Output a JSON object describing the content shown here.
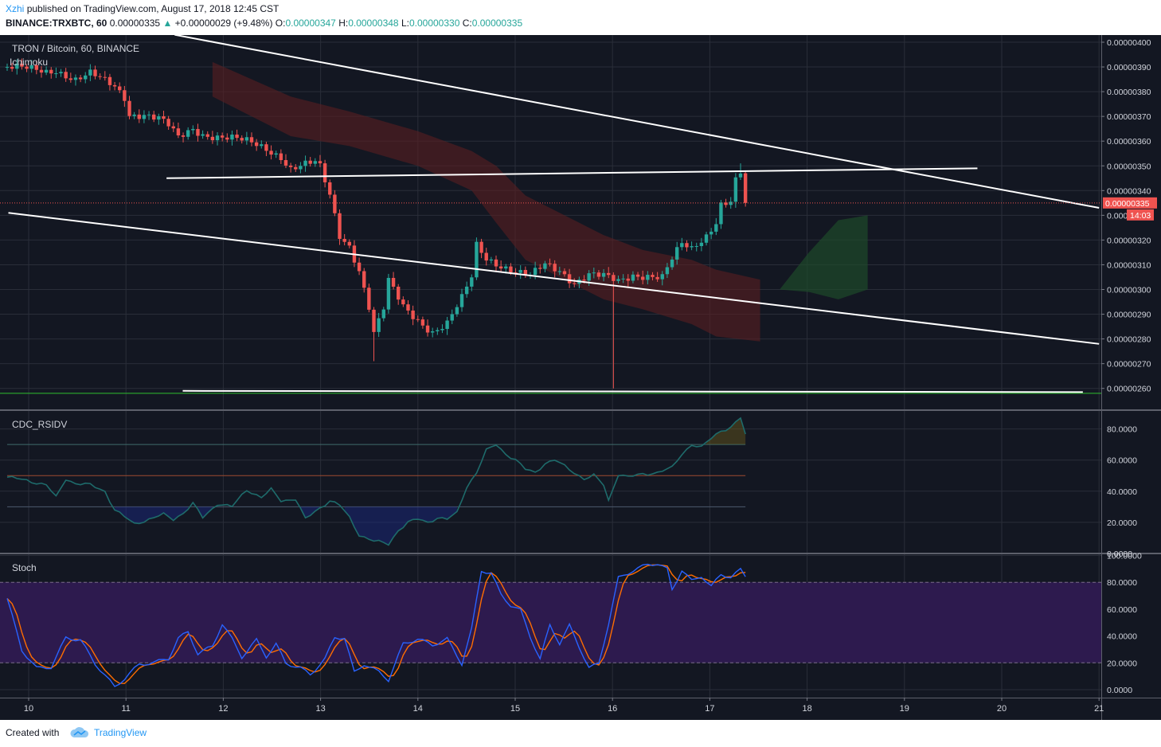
{
  "header": {
    "author": "Xzhi",
    "published": "published on TradingView.com, August 17, 2018 12:45 CST",
    "symbol": "BINANCE:TRXBTC, 60",
    "last": "0.00000335",
    "change": "+0.00000029 (+9.48%)",
    "o_label": "O:",
    "o_value": "0.00000347",
    "h_label": "H:",
    "h_value": "0.00000348",
    "l_label": "L:",
    "l_value": "0.00000330",
    "c_label": "C:",
    "c_value": "0.00000335"
  },
  "footer": {
    "created_with": "Created with",
    "brand": "TradingView"
  },
  "colors": {
    "background": "#131722",
    "grid": "#2a2e39",
    "up": "#26a69a",
    "down": "#ef5350",
    "trend": "#ffffff",
    "support": "#2fbf2f",
    "rsi": "#1e6b6b",
    "stoch_k": "#2962ff",
    "stoch_d": "#ff6d00",
    "stoch_band": "#2d1a4e",
    "price_tag": "#ef5350"
  },
  "chart_data": [
    {
      "type": "candlestick",
      "title": "TRON / Bitcoin, 60, BINANCE",
      "indicator": "Ichimoku",
      "x_ticks": [
        "10",
        "11",
        "12",
        "13",
        "14",
        "15",
        "16",
        "17",
        "18",
        "19",
        "20",
        "21"
      ],
      "y_ticks": [
        "0.00000400",
        "0.00000390",
        "0.00000380",
        "0.00000370",
        "0.00000360",
        "0.00000350",
        "0.00000340",
        "0.00000330",
        "0.00000320",
        "0.00000310",
        "0.00000300",
        "0.00000290",
        "0.00000280",
        "0.00000270",
        "0.00000260"
      ],
      "ylim": [
        2.56e-06,
        4.02e-06
      ],
      "last_price_label": "0.00000335",
      "last_price": 3.35e-06,
      "countdown": "14:03",
      "price_keyframes": [
        [
          0,
          390
        ],
        [
          8,
          388
        ],
        [
          10,
          389
        ],
        [
          14,
          385
        ],
        [
          17,
          387
        ],
        [
          20,
          384
        ],
        [
          22,
          382
        ],
        [
          24,
          378
        ],
        [
          25,
          371
        ],
        [
          28,
          371
        ],
        [
          31,
          369
        ],
        [
          33,
          366
        ],
        [
          35,
          361
        ],
        [
          38,
          365
        ],
        [
          40,
          363
        ],
        [
          43,
          362
        ],
        [
          46,
          361
        ],
        [
          50,
          359
        ],
        [
          53,
          357
        ],
        [
          56,
          354
        ],
        [
          58,
          349
        ],
        [
          60,
          350
        ],
        [
          63,
          351
        ],
        [
          64,
          349
        ],
        [
          66,
          338
        ],
        [
          68,
          322
        ],
        [
          70,
          318
        ],
        [
          72,
          308
        ],
        [
          74,
          293
        ],
        [
          75,
          282
        ],
        [
          77,
          292
        ],
        [
          78,
          303
        ],
        [
          81,
          293
        ],
        [
          84,
          288
        ],
        [
          87,
          283
        ],
        [
          90,
          286
        ],
        [
          93,
          296
        ],
        [
          95,
          305
        ],
        [
          96,
          318
        ],
        [
          98,
          313
        ],
        [
          101,
          310
        ],
        [
          104,
          307
        ],
        [
          107,
          305
        ],
        [
          110,
          310
        ],
        [
          113,
          308
        ],
        [
          116,
          303
        ],
        [
          119,
          306
        ],
        [
          122,
          305
        ],
        [
          125,
          303
        ],
        [
          128,
          306
        ],
        [
          131,
          306
        ],
        [
          134,
          305
        ],
        [
          136,
          312
        ],
        [
          138,
          318
        ],
        [
          140,
          316
        ],
        [
          143,
          322
        ],
        [
          145,
          328
        ],
        [
          146,
          335
        ],
        [
          148,
          336
        ],
        [
          149,
          344
        ],
        [
          150,
          347
        ],
        [
          151,
          335
        ]
      ],
      "candle_count": 152,
      "wick_spikes": [
        {
          "index": 75,
          "low": 271
        },
        {
          "index": 124,
          "low": 260
        },
        {
          "index": 150,
          "high": 351
        }
      ],
      "trend_lines": [
        {
          "from": [
            "2018-08-11 12:00",
            403
          ],
          "to": [
            "2018-08-21 00:00",
            333
          ]
        },
        {
          "from": [
            "2018-08-11 10:00",
            345
          ],
          "to": [
            "2018-08-19 18:00",
            349
          ]
        },
        {
          "from": [
            "2018-08-09 19:00",
            331
          ],
          "to": [
            "2018-08-21 00:00",
            278
          ]
        },
        {
          "from": [
            "2018-08-11 14:00",
            259
          ],
          "to": [
            "2018-08-20 20:00",
            258.5
          ]
        }
      ],
      "support_line": 258.5,
      "cloud_bear": [
        [
          42,
          392,
          378
        ],
        [
          58,
          378,
          362
        ],
        [
          70,
          372,
          358
        ],
        [
          84,
          364,
          350
        ],
        [
          95,
          356,
          340
        ],
        [
          100,
          350,
          327
        ],
        [
          106,
          338,
          312
        ],
        [
          114,
          330,
          304
        ],
        [
          122,
          322,
          296
        ],
        [
          130,
          316,
          292
        ],
        [
          140,
          312,
          286
        ],
        [
          145,
          308,
          281
        ],
        [
          154,
          304,
          279
        ]
      ],
      "cloud_bull": [
        [
          158,
          300,
          300
        ],
        [
          164,
          315,
          299
        ],
        [
          170,
          328,
          296
        ],
        [
          176,
          330,
          300
        ]
      ]
    },
    {
      "type": "line",
      "title": "CDC_RSIDV",
      "y_ticks": [
        "80.0000",
        "60.0000",
        "40.0000",
        "20.0000",
        "0.0000"
      ],
      "ylim": [
        -3,
        101
      ],
      "levels": [
        70,
        50,
        30
      ],
      "keyframes": [
        [
          0,
          49
        ],
        [
          4,
          47
        ],
        [
          8,
          44
        ],
        [
          10,
          36
        ],
        [
          12,
          48
        ],
        [
          14,
          45
        ],
        [
          17,
          44
        ],
        [
          20,
          40
        ],
        [
          22,
          28
        ],
        [
          26,
          19
        ],
        [
          29,
          22
        ],
        [
          32,
          25
        ],
        [
          34,
          22
        ],
        [
          36,
          26
        ],
        [
          38,
          32
        ],
        [
          40,
          23
        ],
        [
          43,
          32
        ],
        [
          46,
          30
        ],
        [
          49,
          41
        ],
        [
          52,
          36
        ],
        [
          54,
          41
        ],
        [
          56,
          34
        ],
        [
          59,
          35
        ],
        [
          61,
          22
        ],
        [
          63,
          27
        ],
        [
          66,
          34
        ],
        [
          68,
          31
        ],
        [
          70,
          23
        ],
        [
          72,
          12
        ],
        [
          75,
          8
        ],
        [
          78,
          6
        ],
        [
          80,
          15
        ],
        [
          82,
          20
        ],
        [
          84,
          22
        ],
        [
          86,
          20
        ],
        [
          88,
          23
        ],
        [
          90,
          22
        ],
        [
          92,
          26
        ],
        [
          94,
          43
        ],
        [
          96,
          52
        ],
        [
          98,
          66
        ],
        [
          100,
          70
        ],
        [
          102,
          64
        ],
        [
          104,
          60
        ],
        [
          106,
          54
        ],
        [
          108,
          52
        ],
        [
          110,
          58
        ],
        [
          112,
          60
        ],
        [
          114,
          56
        ],
        [
          116,
          52
        ],
        [
          118,
          48
        ],
        [
          120,
          50
        ],
        [
          122,
          44
        ],
        [
          123,
          34
        ],
        [
          125,
          51
        ],
        [
          127,
          49
        ],
        [
          130,
          51
        ],
        [
          133,
          52
        ],
        [
          136,
          55
        ],
        [
          138,
          64
        ],
        [
          140,
          70
        ],
        [
          142,
          68
        ],
        [
          144,
          74
        ],
        [
          146,
          79
        ],
        [
          148,
          81
        ],
        [
          150,
          87
        ],
        [
          151,
          76
        ]
      ]
    },
    {
      "type": "line",
      "title": "Stoch",
      "y_ticks": [
        "100.0000",
        "80.0000",
        "60.0000",
        "40.0000",
        "20.0000",
        "0.0000"
      ],
      "ylim": [
        -5,
        101
      ],
      "band": [
        20,
        80
      ],
      "keyframes": [
        [
          0,
          68
        ],
        [
          3,
          30
        ],
        [
          6,
          17
        ],
        [
          9,
          18
        ],
        [
          12,
          40
        ],
        [
          15,
          38
        ],
        [
          18,
          20
        ],
        [
          20,
          11
        ],
        [
          22,
          2
        ],
        [
          24,
          8
        ],
        [
          27,
          18
        ],
        [
          30,
          19
        ],
        [
          33,
          22
        ],
        [
          35,
          37
        ],
        [
          37,
          42
        ],
        [
          39,
          26
        ],
        [
          42,
          32
        ],
        [
          44,
          49
        ],
        [
          46,
          38
        ],
        [
          48,
          25
        ],
        [
          51,
          38
        ],
        [
          53,
          26
        ],
        [
          55,
          35
        ],
        [
          57,
          21
        ],
        [
          60,
          17
        ],
        [
          62,
          12
        ],
        [
          65,
          23
        ],
        [
          67,
          39
        ],
        [
          69,
          38
        ],
        [
          71,
          12
        ],
        [
          73,
          18
        ],
        [
          76,
          12
        ],
        [
          78,
          6
        ],
        [
          81,
          33
        ],
        [
          84,
          37
        ],
        [
          87,
          33
        ],
        [
          90,
          38
        ],
        [
          93,
          20
        ],
        [
          95,
          46
        ],
        [
          97,
          90
        ],
        [
          99,
          88
        ],
        [
          101,
          72
        ],
        [
          103,
          64
        ],
        [
          105,
          60
        ],
        [
          107,
          40
        ],
        [
          109,
          23
        ],
        [
          111,
          48
        ],
        [
          113,
          34
        ],
        [
          115,
          47
        ],
        [
          117,
          31
        ],
        [
          119,
          15
        ],
        [
          121,
          18
        ],
        [
          123,
          48
        ],
        [
          125,
          82
        ],
        [
          128,
          88
        ],
        [
          131,
          93
        ],
        [
          133,
          94
        ],
        [
          135,
          90
        ],
        [
          136,
          75
        ],
        [
          138,
          90
        ],
        [
          140,
          82
        ],
        [
          142,
          86
        ],
        [
          144,
          78
        ],
        [
          146,
          87
        ],
        [
          148,
          85
        ],
        [
          150,
          90
        ],
        [
          151,
          85
        ]
      ]
    }
  ]
}
